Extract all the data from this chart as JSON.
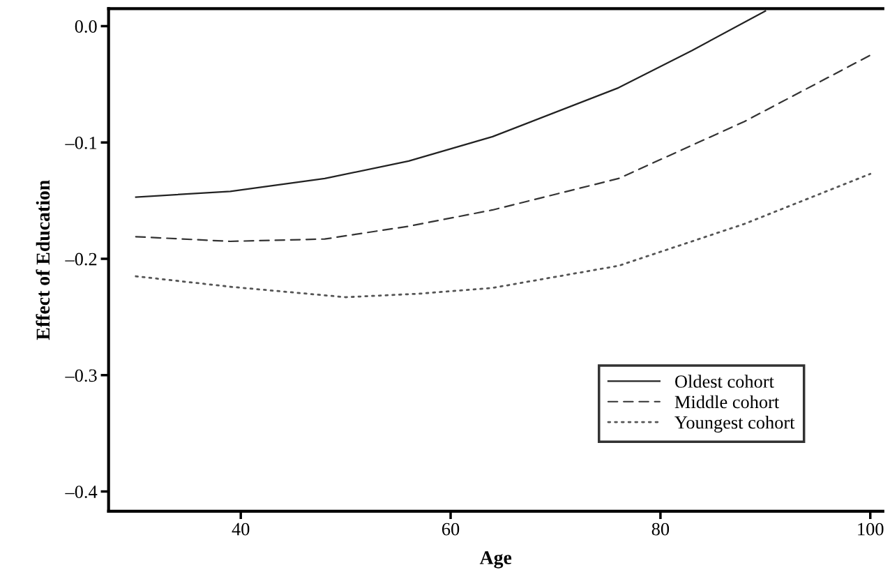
{
  "chart_data": {
    "type": "line",
    "xlabel": "Age",
    "ylabel": "Effect of Education",
    "xlim": [
      27.4,
      101.2
    ],
    "xticks": [
      40,
      60,
      80,
      100
    ],
    "ylim": [
      -0.417,
      0.015
    ],
    "yticks": [
      {
        "value": 0.0,
        "label": "0.0"
      },
      {
        "value": -0.1,
        "label": "–0.1"
      },
      {
        "value": -0.2,
        "label": "–0.2"
      },
      {
        "value": -0.3,
        "label": "–0.3"
      },
      {
        "value": -0.4,
        "label": "–0.4"
      }
    ],
    "grid": false,
    "legend": "bottom right",
    "marker": "none",
    "series": [
      {
        "name": "Oldest cohort",
        "color": "#222222",
        "line_style": "solid",
        "x": [
          30,
          39,
          48,
          56,
          64,
          76,
          83,
          90
        ],
        "values": [
          -0.147,
          -0.142,
          -0.131,
          -0.116,
          -0.095,
          -0.053,
          -0.021,
          0.013
        ]
      },
      {
        "name": "Middle cohort",
        "color": "#333333",
        "line_style": "dashed",
        "x": [
          30,
          39,
          48,
          56,
          64,
          76,
          88,
          100
        ],
        "values": [
          -0.181,
          -0.185,
          -0.183,
          -0.172,
          -0.158,
          -0.131,
          -0.082,
          -0.025
        ]
      },
      {
        "name": "Youngest cohort",
        "color": "#555555",
        "line_style": "dotted",
        "x": [
          30,
          39,
          50,
          57,
          64,
          76,
          88,
          100
        ],
        "values": [
          -0.215,
          -0.224,
          -0.233,
          -0.23,
          -0.225,
          -0.206,
          -0.17,
          -0.127
        ]
      }
    ]
  }
}
